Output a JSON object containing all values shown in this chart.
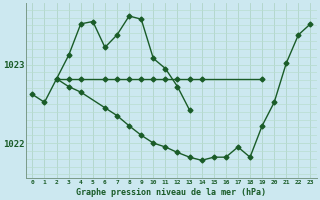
{
  "xlabel": "Graphe pression niveau de la mer (hPa)",
  "bg_color": "#cce8f0",
  "grid_color_v": "#b0d4c8",
  "grid_color_h": "#b8ddd0",
  "line_color": "#1a5c28",
  "tick_label_color": "#1a5c28",
  "xlabel_color": "#1a5c28",
  "series1_x": [
    0,
    1,
    3,
    4,
    5,
    6,
    7,
    8,
    9,
    10,
    11,
    12,
    13
  ],
  "series1_y": [
    1022.62,
    1022.52,
    1023.12,
    1023.52,
    1023.55,
    1023.22,
    1023.38,
    1023.62,
    1023.58,
    1023.08,
    1022.95,
    1022.72,
    1022.42
  ],
  "series2_x": [
    2,
    3,
    4,
    6,
    7,
    8,
    9,
    10,
    11,
    12,
    13,
    14,
    19
  ],
  "series2_y": [
    1022.82,
    1022.82,
    1022.82,
    1022.82,
    1022.82,
    1022.82,
    1022.82,
    1022.82,
    1022.82,
    1022.82,
    1022.82,
    1022.82,
    1022.82
  ],
  "series3_x": [
    2,
    3,
    4,
    6,
    7,
    8,
    9,
    10,
    11,
    12,
    13,
    14,
    15,
    16,
    17,
    18,
    19,
    20,
    21,
    22,
    23
  ],
  "series3_y": [
    1022.82,
    1022.72,
    1022.65,
    1022.45,
    1022.35,
    1022.22,
    1022.1,
    1022.0,
    1021.95,
    1021.88,
    1021.82,
    1021.78,
    1021.82,
    1021.82,
    1021.95,
    1021.82,
    1022.22,
    1022.52,
    1023.02,
    1023.38,
    1023.52
  ],
  "ylim_low": 1021.55,
  "ylim_high": 1023.78,
  "yticks": [
    1022,
    1023
  ],
  "xticks": [
    0,
    1,
    2,
    3,
    4,
    5,
    6,
    7,
    8,
    9,
    10,
    11,
    12,
    13,
    14,
    15,
    16,
    17,
    18,
    19,
    20,
    21,
    22,
    23
  ]
}
